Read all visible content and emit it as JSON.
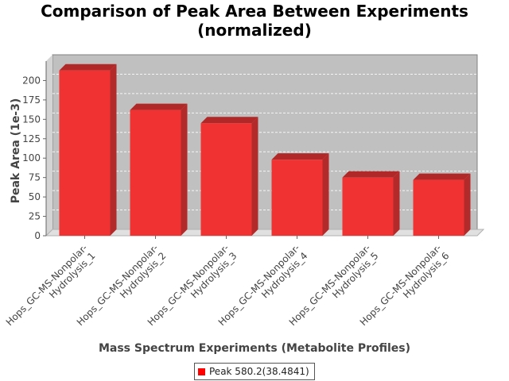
{
  "chart_data": {
    "type": "bar",
    "title_line1": "Comparison of Peak Area Between Experiments",
    "title_line2": "(normalized)",
    "xlabel": "Mass Spectrum Experiments (Metabolite Profiles)",
    "ylabel": "Peak Area (1e-3)",
    "categories": [
      [
        "Hops_GC-MS-Nonpolar-",
        "Hydrolysis_1"
      ],
      [
        "Hops_GC-MS-Nonpolar-",
        "Hydrolysis_2"
      ],
      [
        "Hops_GC-MS-Nonpolar-",
        "Hydrolysis_3"
      ],
      [
        "Hops_GC-MS-Nonpolar-",
        "Hydrolysis_4"
      ],
      [
        "Hops_GC-MS-Nonpolar-",
        "Hydrolysis_5"
      ],
      [
        "Hops_GC-MS-Nonpolar-",
        "Hydrolysis_6"
      ]
    ],
    "series": [
      {
        "name": "Peak 580.2(38.4841)",
        "values": [
          213,
          162,
          145,
          98,
          75,
          72
        ],
        "color": "#ff0000"
      }
    ],
    "ylim": [
      0,
      225
    ],
    "yticks": [
      0,
      25,
      50,
      75,
      100,
      125,
      150,
      175,
      200
    ],
    "grid": true,
    "legend_position": "bottom",
    "plot_background": "#c0c0c0"
  }
}
